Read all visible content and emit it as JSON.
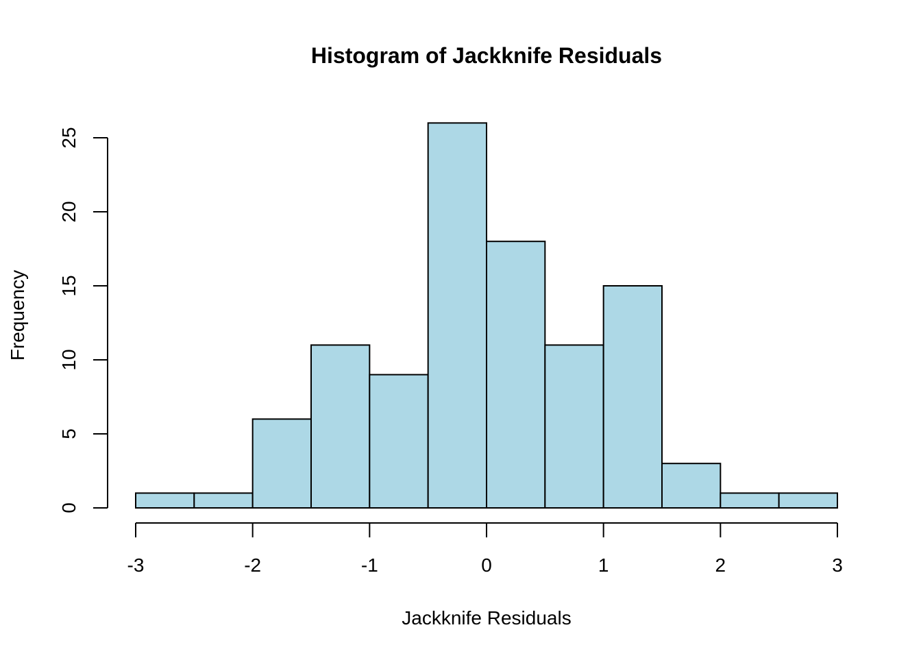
{
  "chart_data": {
    "type": "bar",
    "title": "Histogram of Jackknife Residuals",
    "xlabel": "Jackknife Residuals",
    "ylabel": "Frequency",
    "bin_edges": [
      -3,
      -2.5,
      -2,
      -1.5,
      -1,
      -0.5,
      0,
      0.5,
      1,
      1.5,
      2,
      2.5,
      3
    ],
    "values": [
      1,
      1,
      6,
      11,
      9,
      26,
      18,
      11,
      15,
      3,
      1,
      1
    ],
    "xlim": [
      -3,
      3
    ],
    "ylim": [
      0,
      25
    ],
    "x_ticks": [
      -3,
      -2,
      -1,
      0,
      1,
      2,
      3
    ],
    "x_tick_labels": [
      "-3",
      "-2",
      "-1",
      "0",
      "1",
      "2",
      "3"
    ],
    "y_ticks": [
      0,
      5,
      10,
      15,
      20,
      25
    ],
    "y_tick_labels": [
      "0",
      "5",
      "10",
      "15",
      "20",
      "25"
    ],
    "bar_color": "#add8e6",
    "border_color": "#000000",
    "grid": false,
    "legend": "none"
  }
}
